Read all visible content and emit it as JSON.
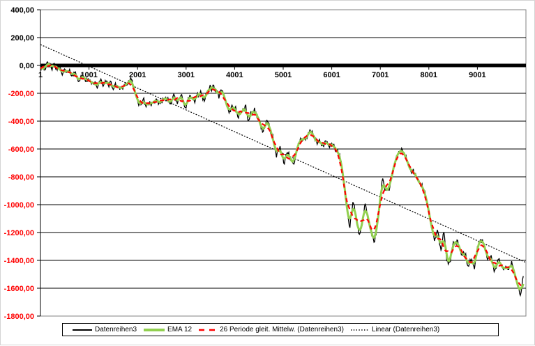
{
  "chart_data": {
    "type": "line",
    "title": "",
    "x_axis": {
      "range": [
        1,
        10001
      ],
      "ticks": [
        {
          "label": "1",
          "value": 1
        },
        {
          "label": "1001",
          "value": 1001
        },
        {
          "label": "2001",
          "value": 2001
        },
        {
          "label": "3001",
          "value": 3001
        },
        {
          "label": "4001",
          "value": 4001
        },
        {
          "label": "5001",
          "value": 5001
        },
        {
          "label": "6001",
          "value": 6001
        },
        {
          "label": "7001",
          "value": 7001
        },
        {
          "label": "8001",
          "value": 8001
        },
        {
          "label": "9001",
          "value": 9001
        }
      ]
    },
    "y_axis": {
      "range": [
        -1800,
        400
      ],
      "step": 200,
      "label_color": "#000000",
      "negative_label_color": "#FF0000",
      "ticks": [
        {
          "label": "400,00",
          "value": 400
        },
        {
          "label": "200,00",
          "value": 200
        },
        {
          "label": "0,00",
          "value": 0
        },
        {
          "label": "-200,00",
          "value": -200
        },
        {
          "label": "-400,00",
          "value": -400
        },
        {
          "label": "-600,00",
          "value": -600
        },
        {
          "label": "-800,00",
          "value": -800
        },
        {
          "label": "-1000,00",
          "value": -1000
        },
        {
          "label": "-1200,00",
          "value": -1200
        },
        {
          "label": "-1400,00",
          "value": -1400
        },
        {
          "label": "-1600,00",
          "value": -1600
        },
        {
          "label": "-1800,00",
          "value": -1800
        }
      ]
    },
    "grid": {
      "horizontal": true,
      "vertical": false,
      "zero_axis_thick": true
    },
    "series": [
      {
        "name": "Datenreihen3",
        "kind": "raw",
        "color": "#000000",
        "noise_amplitude": 24,
        "noise_seed": 42,
        "sample_step": 15,
        "anchors": [
          [
            1,
            -5
          ],
          [
            120,
            -2
          ],
          [
            260,
            -12
          ],
          [
            400,
            -28
          ],
          [
            543,
            -55
          ],
          [
            614,
            -60
          ],
          [
            686,
            -48
          ],
          [
            757,
            -80
          ],
          [
            829,
            -95
          ],
          [
            900,
            -85
          ],
          [
            1001,
            -120
          ],
          [
            1086,
            -108
          ],
          [
            1186,
            -150
          ],
          [
            1257,
            -118
          ],
          [
            1329,
            -135
          ],
          [
            1400,
            -120
          ],
          [
            1500,
            -160
          ],
          [
            1614,
            -140
          ],
          [
            1686,
            -160
          ],
          [
            1757,
            -135
          ],
          [
            1830,
            -122
          ],
          [
            1870,
            -118
          ],
          [
            1930,
            -160
          ],
          [
            1970,
            -230
          ],
          [
            2014,
            -298
          ],
          [
            2060,
            -270
          ],
          [
            2114,
            -250
          ],
          [
            2180,
            -290
          ],
          [
            2257,
            -265
          ],
          [
            2329,
            -285
          ],
          [
            2400,
            -275
          ],
          [
            2471,
            -262
          ],
          [
            2543,
            -240
          ],
          [
            2614,
            -225
          ],
          [
            2700,
            -255
          ],
          [
            2729,
            -215
          ],
          [
            2829,
            -275
          ],
          [
            2914,
            -220
          ],
          [
            3000,
            -295
          ],
          [
            3086,
            -215
          ],
          [
            3171,
            -270
          ],
          [
            3314,
            -185
          ],
          [
            3371,
            -250
          ],
          [
            3486,
            -160
          ],
          [
            3600,
            -170
          ],
          [
            3671,
            -235
          ],
          [
            3729,
            -185
          ],
          [
            3843,
            -290
          ],
          [
            3886,
            -320
          ],
          [
            3971,
            -285
          ],
          [
            4071,
            -355
          ],
          [
            4171,
            -320
          ],
          [
            4229,
            -300
          ],
          [
            4271,
            -390
          ],
          [
            4343,
            -350
          ],
          [
            4414,
            -322
          ],
          [
            4500,
            -380
          ],
          [
            4570,
            -472
          ],
          [
            4640,
            -420
          ],
          [
            4690,
            -408
          ],
          [
            4780,
            -508
          ],
          [
            4820,
            -580
          ],
          [
            4860,
            -655
          ],
          [
            4900,
            -630
          ],
          [
            4943,
            -608
          ],
          [
            5014,
            -688
          ],
          [
            5070,
            -650
          ],
          [
            5114,
            -638
          ],
          [
            5160,
            -665
          ],
          [
            5214,
            -688
          ],
          [
            5270,
            -610
          ],
          [
            5329,
            -555
          ],
          [
            5430,
            -512
          ],
          [
            5500,
            -530
          ],
          [
            5571,
            -468
          ],
          [
            5640,
            -520
          ],
          [
            5686,
            -545
          ],
          [
            5760,
            -565
          ],
          [
            5829,
            -578
          ],
          [
            5900,
            -555
          ],
          [
            5971,
            -558
          ],
          [
            6030,
            -575
          ],
          [
            6086,
            -592
          ],
          [
            6140,
            -640
          ],
          [
            6186,
            -678
          ],
          [
            6257,
            -845
          ],
          [
            6329,
            -1078
          ],
          [
            6371,
            -1145
          ],
          [
            6443,
            -985
          ],
          [
            6500,
            -1078
          ],
          [
            6571,
            -1235
          ],
          [
            6629,
            -1120
          ],
          [
            6686,
            -1002
          ],
          [
            6771,
            -1118
          ],
          [
            6871,
            -1262
          ],
          [
            6929,
            -1180
          ],
          [
            6971,
            -1078
          ],
          [
            7043,
            -802
          ],
          [
            7086,
            -878
          ],
          [
            7157,
            -918
          ],
          [
            7214,
            -840
          ],
          [
            7257,
            -772
          ],
          [
            7300,
            -718
          ],
          [
            7357,
            -642
          ],
          [
            7429,
            -598
          ],
          [
            7486,
            -622
          ],
          [
            7571,
            -708
          ],
          [
            7629,
            -745
          ],
          [
            7686,
            -768
          ],
          [
            7757,
            -820
          ],
          [
            7829,
            -855
          ],
          [
            7880,
            -880
          ],
          [
            7929,
            -905
          ],
          [
            7971,
            -1010
          ],
          [
            8043,
            -1125
          ],
          [
            8086,
            -1200
          ],
          [
            8129,
            -1260
          ],
          [
            8171,
            -1175
          ],
          [
            8229,
            -1310
          ],
          [
            8257,
            -1345
          ],
          [
            8314,
            -1200
          ],
          [
            8371,
            -1390
          ],
          [
            8429,
            -1430
          ],
          [
            8500,
            -1285
          ],
          [
            8586,
            -1268
          ],
          [
            8671,
            -1370
          ],
          [
            8743,
            -1340
          ],
          [
            8814,
            -1450
          ],
          [
            8886,
            -1375
          ],
          [
            8943,
            -1465
          ],
          [
            9001,
            -1300
          ],
          [
            9043,
            -1270
          ],
          [
            9100,
            -1245
          ],
          [
            9157,
            -1330
          ],
          [
            9229,
            -1385
          ],
          [
            9286,
            -1345
          ],
          [
            9357,
            -1480
          ],
          [
            9443,
            -1400
          ],
          [
            9514,
            -1485
          ],
          [
            9586,
            -1440
          ],
          [
            9657,
            -1455
          ],
          [
            9714,
            -1420
          ],
          [
            9786,
            -1520
          ],
          [
            9843,
            -1610
          ],
          [
            9886,
            -1655
          ],
          [
            9929,
            -1545
          ],
          [
            9960,
            -1530
          ]
        ]
      },
      {
        "name": "EMA 12",
        "kind": "smooth",
        "color": "#92D050",
        "window": 7,
        "width": 3
      },
      {
        "name": "26 Periode gleit. Mittelw. (Datenreihen3)",
        "kind": "smooth-dashed",
        "color": "#FF0000",
        "window": 15,
        "width": 2.2,
        "dash": "6 4.5"
      },
      {
        "name": "Linear (Datenreihen3)",
        "kind": "trendline",
        "color": "#000000",
        "dash": "2 2",
        "points": [
          [
            1,
            150
          ],
          [
            10001,
            -1415
          ]
        ]
      }
    ],
    "legend": [
      {
        "label": "Datenreihen3",
        "swatch": "solid-black"
      },
      {
        "label": "EMA 12",
        "swatch": "thick-green"
      },
      {
        "label": "26 Periode gleit. Mittelw. (Datenreihen3)",
        "swatch": "dashed-red"
      },
      {
        "label": "Linear (Datenreihen3)",
        "swatch": "dotted-black"
      }
    ]
  }
}
